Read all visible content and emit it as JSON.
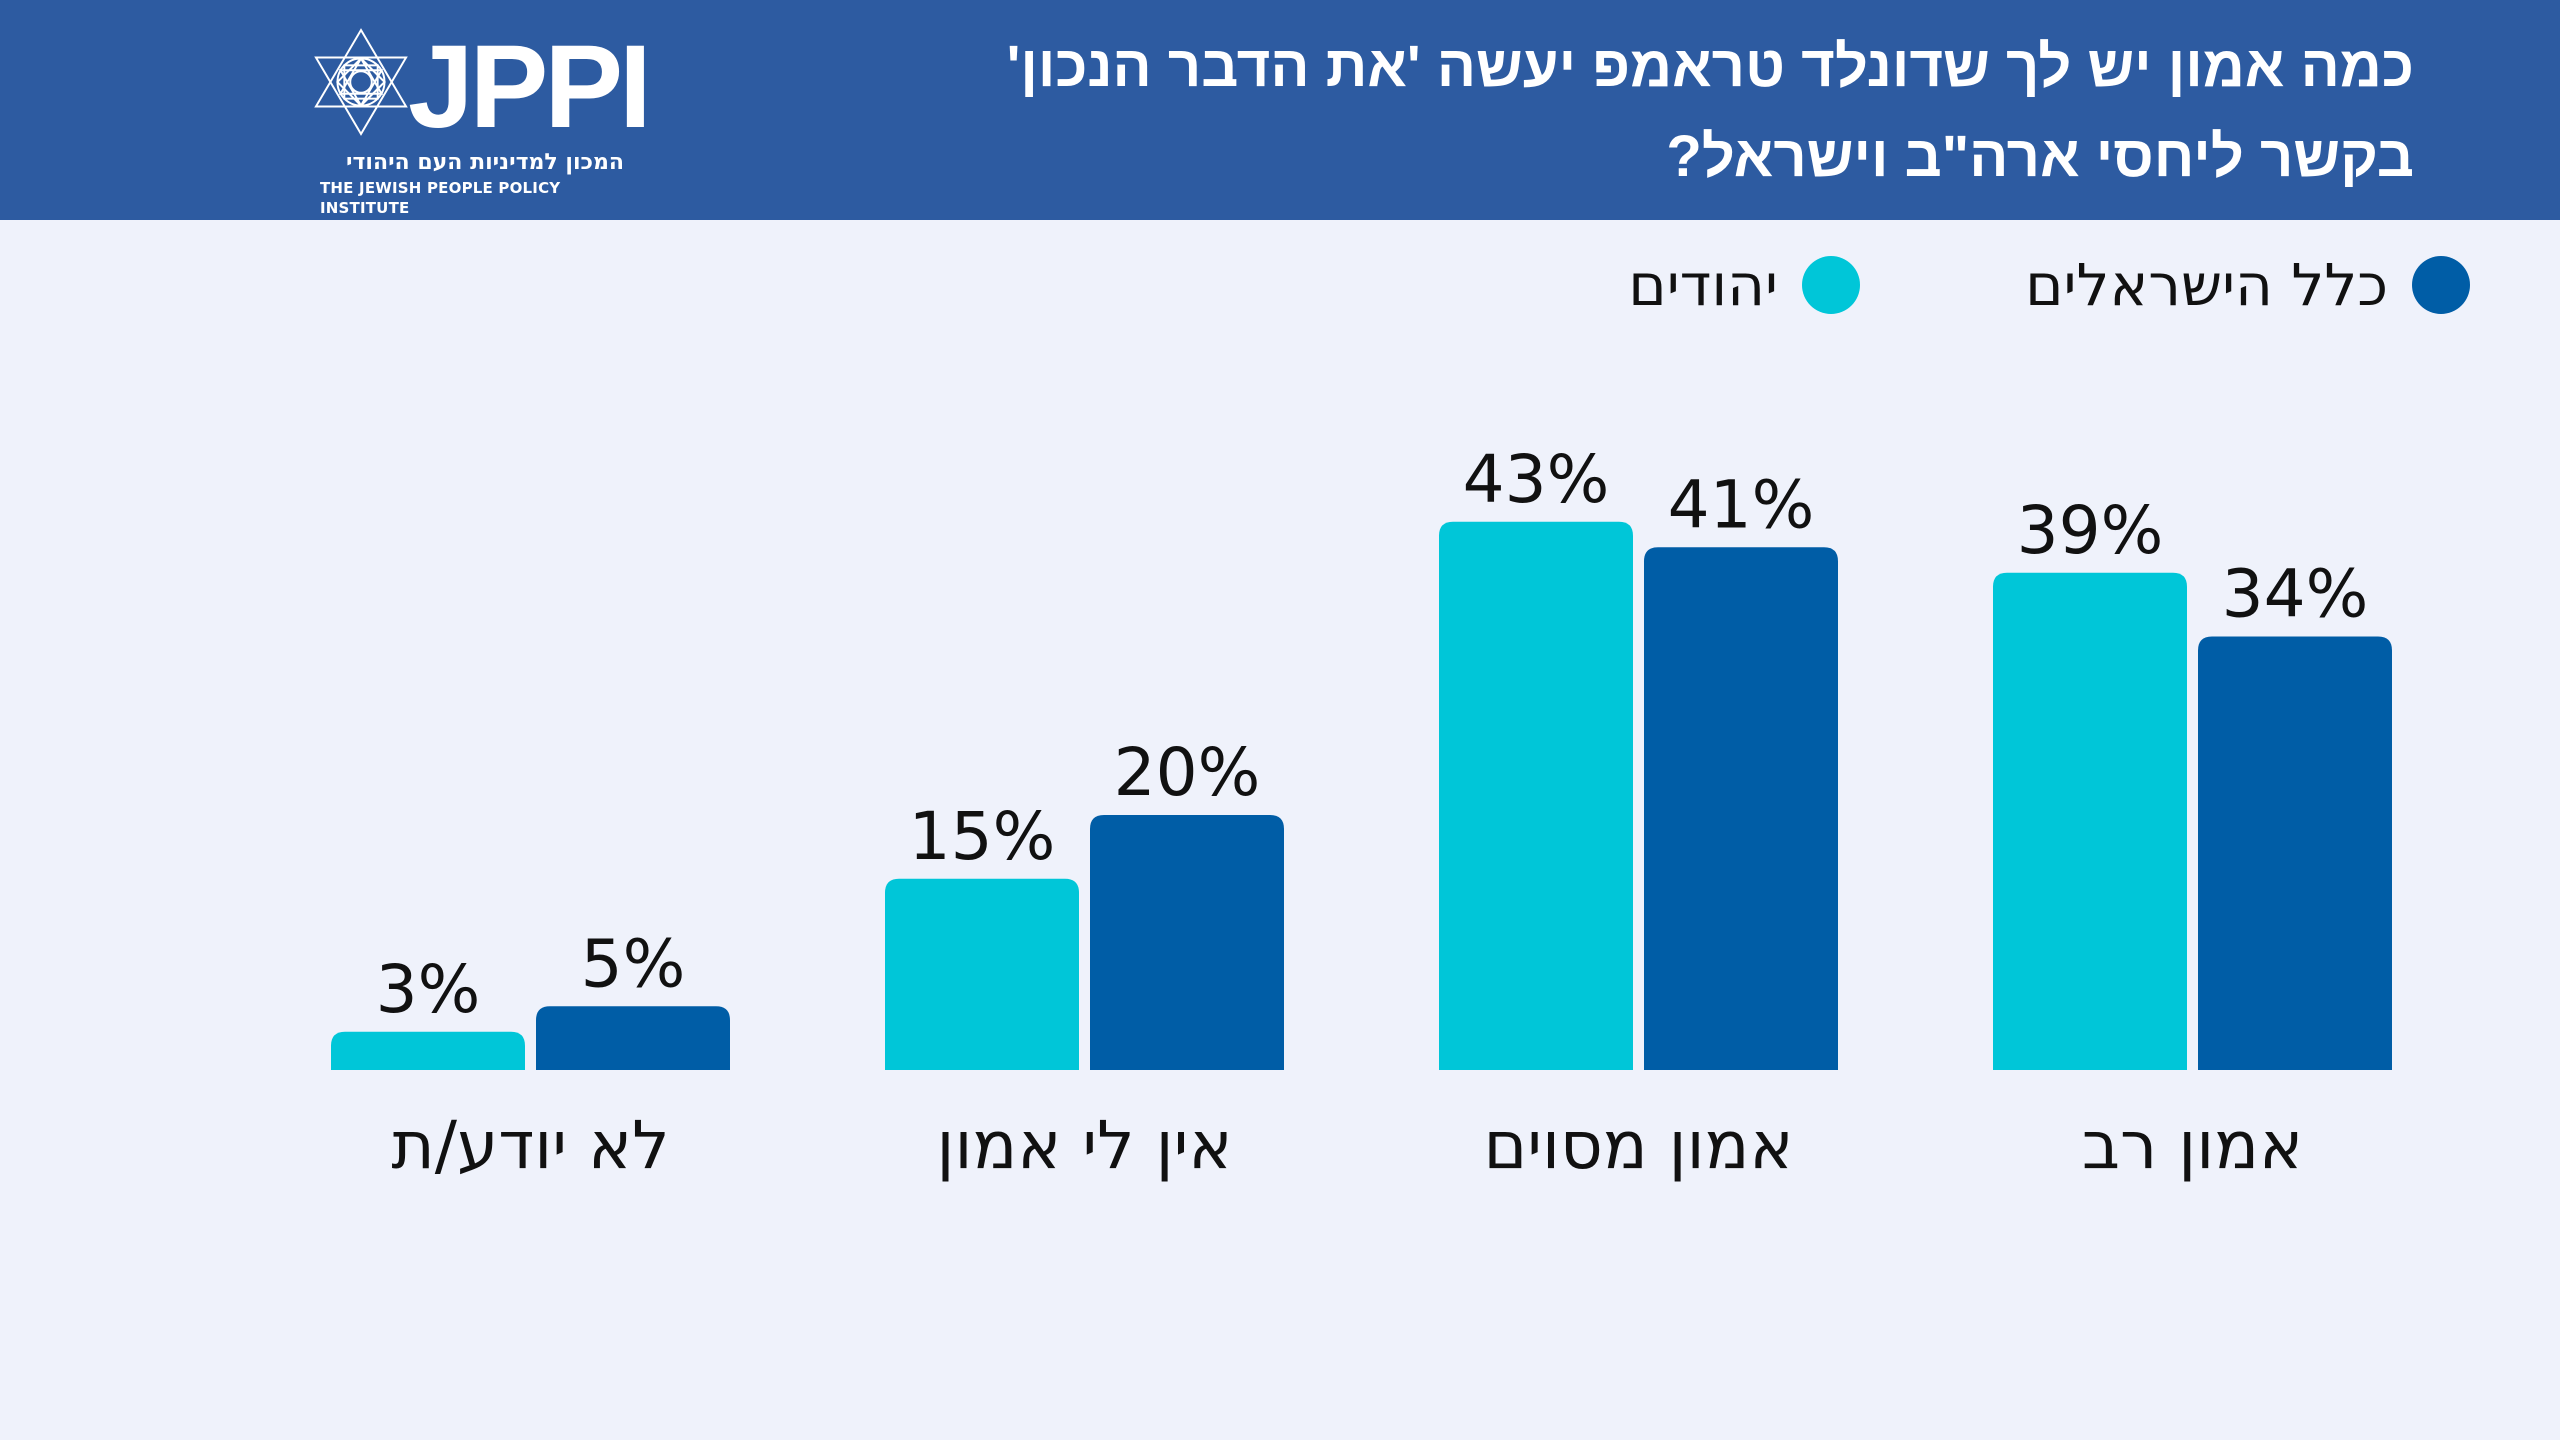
{
  "header": {
    "title_line1": "כמה אמון יש לך שדונלד טראמפ יעשה 'את הדבר הנכון'",
    "title_line2": "בקשר ליחסי ארה\"ב וישראל?",
    "logo": {
      "wordmark": "JPPI",
      "hebrew_name": "המכון למדיניות העם היהודי",
      "english_name": "THE JEWISH PEOPLE POLICY INSTITUTE",
      "icon": "star-of-david-icon"
    }
  },
  "colors": {
    "header_bg": "#2D5BA1",
    "page_bg": "#EFF2FB",
    "jews": "#00C6D8",
    "all_israelis": "#005DA6"
  },
  "chart_data": {
    "type": "bar",
    "title": "כמה אמון יש לך שדונלד טראמפ יעשה 'את הדבר הנכון' בקשר ליחסי ארה\"ב וישראל?",
    "xlabel": "",
    "ylabel": "",
    "ylim": [
      0,
      45
    ],
    "grid": false,
    "legend_position": "top-right",
    "categories": [
      "לא יודע/ת",
      "אין לי אמון",
      "אמון מסוים",
      "אמון רב"
    ],
    "series": [
      {
        "name": "יהודים",
        "color": "#00C6D8",
        "values": [
          3,
          15,
          43,
          39
        ],
        "labels": [
          "3%",
          "15%",
          "43%",
          "39%"
        ]
      },
      {
        "name": "כלל הישראלים",
        "color": "#005DA6",
        "values": [
          5,
          20,
          41,
          34
        ],
        "labels": [
          "5%",
          "20%",
          "41%",
          "34%"
        ]
      }
    ]
  }
}
